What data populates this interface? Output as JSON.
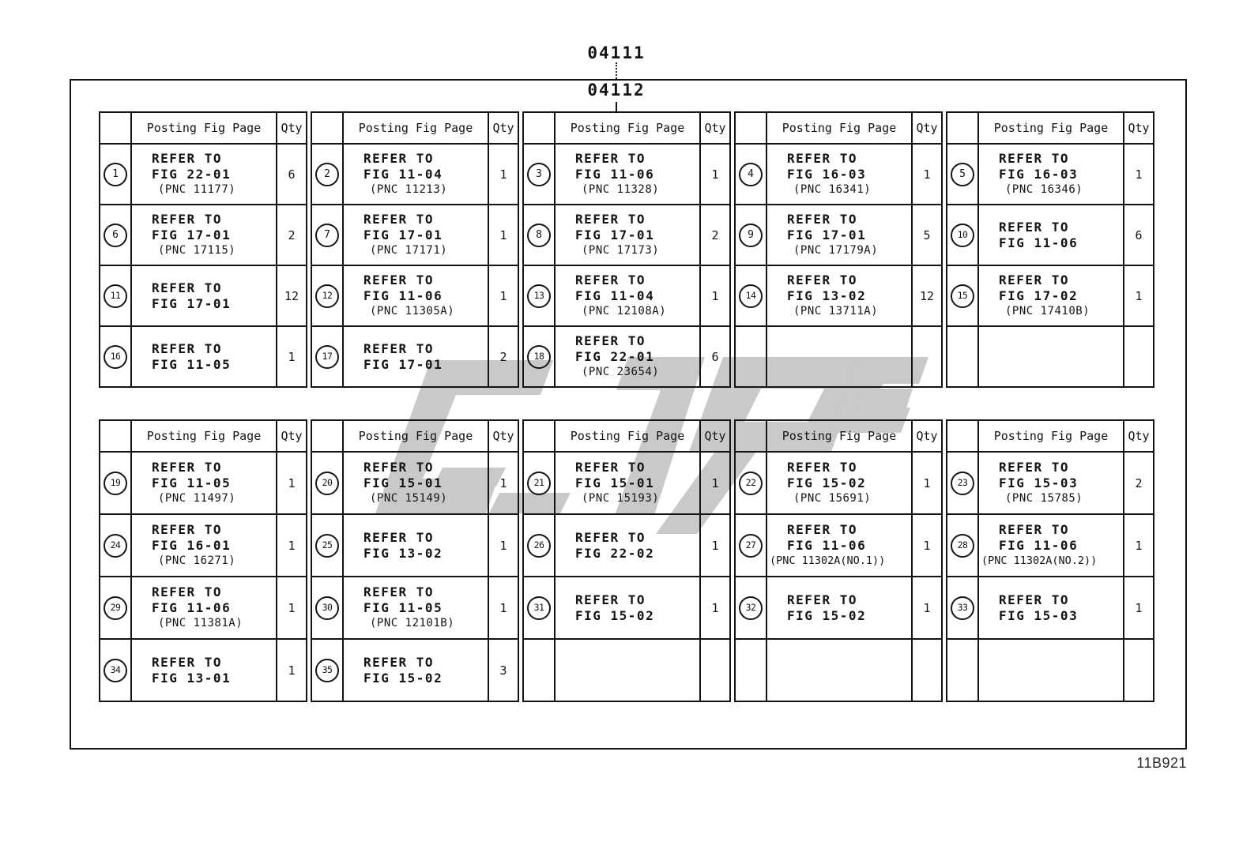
{
  "page": {
    "code_top": "04111",
    "code_inner": "04112",
    "doc_ref": "11B921"
  },
  "labels": {
    "fig": "Posting Fig Page",
    "qty": "Qty",
    "refer": "REFER TO"
  },
  "tables": [
    {
      "rows": [
        [
          {
            "num": "1",
            "fig": "FIG 22-01",
            "pnc": "(PNC 11177)",
            "qty": "6"
          },
          {
            "num": "2",
            "fig": "FIG 11-04",
            "pnc": "(PNC 11213)",
            "qty": "1"
          },
          {
            "num": "3",
            "fig": "FIG 11-06",
            "pnc": "(PNC 11328)",
            "qty": "1"
          },
          {
            "num": "4",
            "fig": "FIG 16-03",
            "pnc": "(PNC 16341)",
            "qty": "1"
          },
          {
            "num": "5",
            "fig": "FIG 16-03",
            "pnc": "(PNC 16346)",
            "qty": "1"
          }
        ],
        [
          {
            "num": "6",
            "fig": "FIG 17-01",
            "pnc": "(PNC 17115)",
            "qty": "2"
          },
          {
            "num": "7",
            "fig": "FIG 17-01",
            "pnc": "(PNC 17171)",
            "qty": "1"
          },
          {
            "num": "8",
            "fig": "FIG 17-01",
            "pnc": "(PNC 17173)",
            "qty": "2"
          },
          {
            "num": "9",
            "fig": "FIG 17-01",
            "pnc": "(PNC 17179A)",
            "qty": "5"
          },
          {
            "num": "10",
            "fig": "FIG 11-06",
            "pnc": null,
            "qty": "6"
          }
        ],
        [
          {
            "num": "11",
            "fig": "FIG 17-01",
            "pnc": null,
            "qty": "12"
          },
          {
            "num": "12",
            "fig": "FIG 11-06",
            "pnc": "(PNC 11305A)",
            "qty": "1"
          },
          {
            "num": "13",
            "fig": "FIG 11-04",
            "pnc": "(PNC 12108A)",
            "qty": "1"
          },
          {
            "num": "14",
            "fig": "FIG 13-02",
            "pnc": "(PNC 13711A)",
            "qty": "12"
          },
          {
            "num": "15",
            "fig": "FIG 17-02",
            "pnc": "(PNC 17410B)",
            "qty": "1"
          }
        ],
        [
          {
            "num": "16",
            "fig": "FIG 11-05",
            "pnc": null,
            "qty": "1"
          },
          {
            "num": "17",
            "fig": "FIG 17-01",
            "pnc": null,
            "qty": "2"
          },
          {
            "num": "18",
            "fig": "FIG 22-01",
            "pnc": "(PNC 23654)",
            "qty": "6"
          },
          null,
          null
        ]
      ]
    },
    {
      "rows": [
        [
          {
            "num": "19",
            "fig": "FIG 11-05",
            "pnc": "(PNC 11497)",
            "qty": "1"
          },
          {
            "num": "20",
            "fig": "FIG 15-01",
            "pnc": "(PNC 15149)",
            "qty": "1"
          },
          {
            "num": "21",
            "fig": "FIG 15-01",
            "pnc": "(PNC 15193)",
            "qty": "1"
          },
          {
            "num": "22",
            "fig": "FIG 15-02",
            "pnc": "(PNC 15691)",
            "qty": "1"
          },
          {
            "num": "23",
            "fig": "FIG 15-03",
            "pnc": "(PNC 15785)",
            "qty": "2"
          }
        ],
        [
          {
            "num": "24",
            "fig": "FIG 16-01",
            "pnc": "(PNC 16271)",
            "qty": "1"
          },
          {
            "num": "25",
            "fig": "FIG 13-02",
            "pnc": null,
            "qty": "1"
          },
          {
            "num": "26",
            "fig": "FIG 22-02",
            "pnc": null,
            "qty": "1"
          },
          {
            "num": "27",
            "fig": "FIG 11-06",
            "pnc": "(PNC 11302A(NO.1))",
            "qty": "1"
          },
          {
            "num": "28",
            "fig": "FIG 11-06",
            "pnc": "(PNC 11302A(NO.2))",
            "qty": "1"
          }
        ],
        [
          {
            "num": "29",
            "fig": "FIG 11-06",
            "pnc": "(PNC 11381A)",
            "qty": "1"
          },
          {
            "num": "30",
            "fig": "FIG 11-05",
            "pnc": "(PNC 12101B)",
            "qty": "1"
          },
          {
            "num": "31",
            "fig": "FIG 15-02",
            "pnc": null,
            "qty": "1"
          },
          {
            "num": "32",
            "fig": "FIG 15-02",
            "pnc": null,
            "qty": "1"
          },
          {
            "num": "33",
            "fig": "FIG 15-03",
            "pnc": null,
            "qty": "1"
          }
        ],
        [
          {
            "num": "34",
            "fig": "FIG 13-01",
            "pnc": null,
            "qty": "1"
          },
          {
            "num": "35",
            "fig": "FIG 15-02",
            "pnc": null,
            "qty": "3"
          },
          null,
          null,
          null
        ]
      ]
    }
  ]
}
